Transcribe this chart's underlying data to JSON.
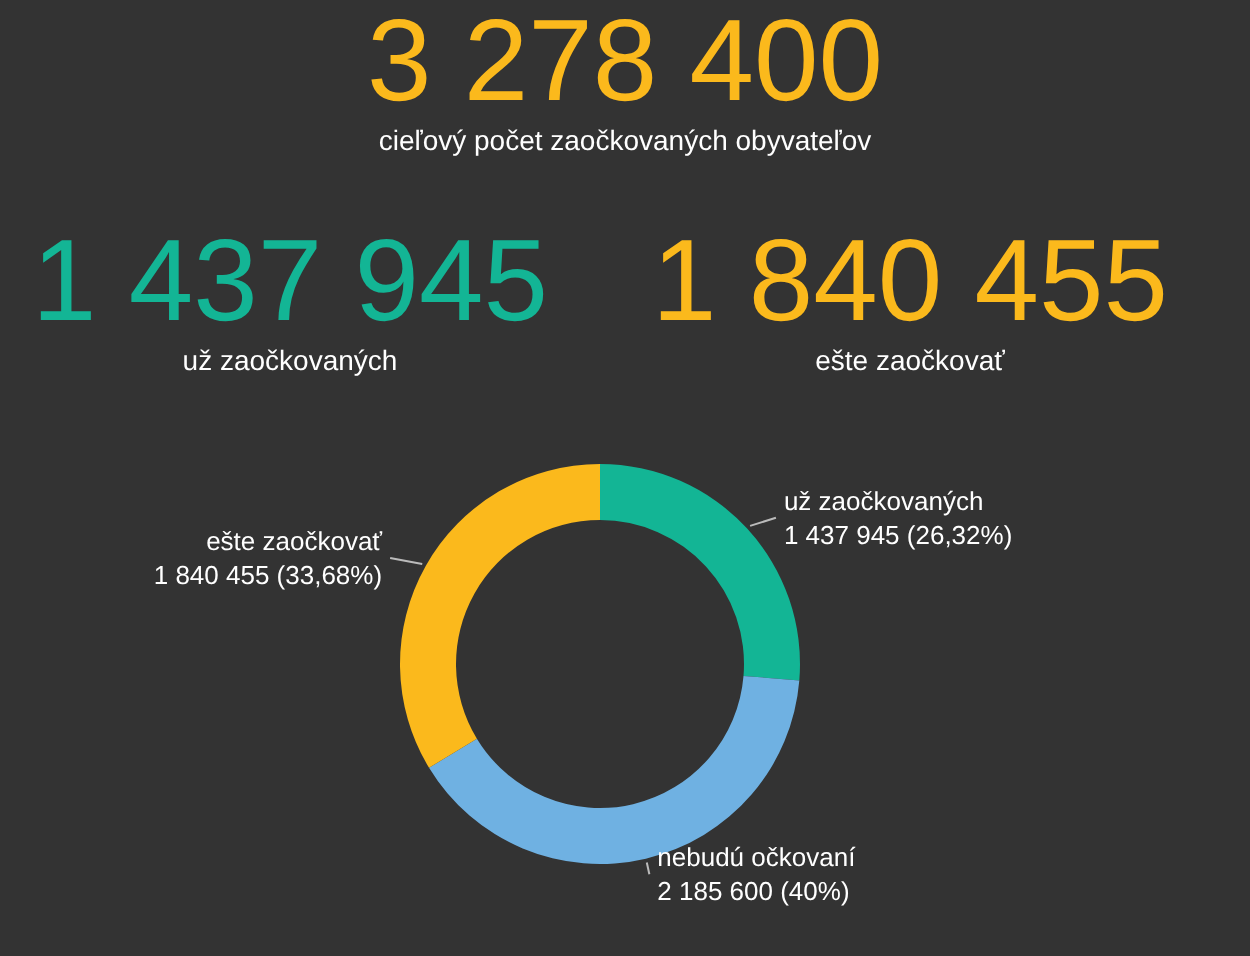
{
  "chart_data": {
    "type": "donut",
    "title": "3 278 400",
    "subtitle": "cieľový počet zaočkovaných obyvateľov",
    "annotations": [
      "1 437 945",
      "už zaočkovaných",
      "1 840 455",
      "ešte zaočkovať"
    ],
    "categories": [
      "už zaočkovaných",
      "nebudú očkovaní",
      "ešte zaočkovať"
    ],
    "values": [
      1437945,
      2185600,
      1840455
    ],
    "colors": [
      "#13b595",
      "#6fb1e2",
      "#fbb91c"
    ],
    "value_labels": [
      "1 437 945 (26,32%)",
      "2 185 600 (40%)",
      "1 840 455 (33,68%)"
    ],
    "legend": false
  }
}
